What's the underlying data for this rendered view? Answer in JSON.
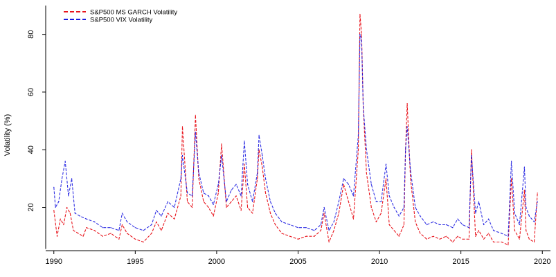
{
  "chart_data": {
    "type": "line",
    "ylabel": "Volatility (%)",
    "xlim": [
      1989.5,
      2020.5
    ],
    "ylim": [
      5,
      90
    ],
    "x_ticks": [
      1990,
      1995,
      2000,
      2005,
      2010,
      2015,
      2020
    ],
    "y_ticks": [
      20,
      40,
      60,
      80
    ],
    "legend_position": "top-left",
    "grid": false,
    "series": [
      {
        "name": "S&P500  MS GARCH Volatility",
        "color": "#e8141c",
        "dash": "dashed",
        "x": [
          1990.0,
          1990.2,
          1990.4,
          1990.6,
          1990.8,
          1991.0,
          1991.2,
          1991.5,
          1991.8,
          1992.0,
          1992.5,
          1993.0,
          1993.5,
          1994.0,
          1994.2,
          1994.5,
          1995.0,
          1995.5,
          1996.0,
          1996.3,
          1996.6,
          1997.0,
          1997.4,
          1997.8,
          1997.9,
          1998.2,
          1998.5,
          1998.7,
          1998.9,
          1999.2,
          1999.5,
          1999.8,
          2000.1,
          2000.3,
          2000.6,
          2000.9,
          2001.2,
          2001.5,
          2001.7,
          2001.9,
          2002.2,
          2002.5,
          2002.6,
          2002.8,
          2003.0,
          2003.3,
          2003.6,
          2004.0,
          2004.5,
          2005.0,
          2005.5,
          2006.0,
          2006.4,
          2006.6,
          2006.9,
          2007.2,
          2007.5,
          2007.8,
          2008.1,
          2008.4,
          2008.7,
          2008.8,
          2008.9,
          2009.0,
          2009.2,
          2009.5,
          2009.8,
          2010.1,
          2010.4,
          2010.6,
          2010.9,
          2011.2,
          2011.5,
          2011.6,
          2011.7,
          2011.9,
          2012.2,
          2012.5,
          2012.9,
          2013.3,
          2013.7,
          2014.1,
          2014.5,
          2014.8,
          2015.1,
          2015.5,
          2015.65,
          2015.9,
          2016.1,
          2016.4,
          2016.7,
          2017.0,
          2017.5,
          2017.9,
          2018.1,
          2018.3,
          2018.6,
          2018.9,
          2019.0,
          2019.2,
          2019.5,
          2019.7
        ],
        "values": [
          19,
          10,
          16,
          14,
          20,
          18,
          12,
          11,
          10,
          13,
          12,
          10,
          11,
          9,
          14,
          11,
          9,
          8,
          11,
          15,
          12,
          18,
          16,
          24,
          48,
          22,
          20,
          52,
          30,
          22,
          20,
          17,
          25,
          42,
          20,
          22,
          24,
          19,
          35,
          20,
          18,
          30,
          40,
          34,
          25,
          18,
          14,
          11,
          10,
          9,
          10,
          10,
          12,
          18,
          8,
          12,
          18,
          28,
          22,
          16,
          40,
          87,
          80,
          55,
          32,
          20,
          15,
          18,
          30,
          14,
          12,
          10,
          14,
          40,
          56,
          30,
          15,
          11,
          9,
          10,
          9,
          10,
          8,
          10,
          9,
          9,
          40,
          10,
          12,
          9,
          11,
          8,
          8,
          7,
          30,
          12,
          9,
          26,
          12,
          9,
          8,
          25
        ]
      },
      {
        "name": "S&P500 VIX Volatility",
        "color": "#1a1ae0",
        "dash": "dashed",
        "x": [
          1990.0,
          1990.1,
          1990.3,
          1990.5,
          1990.7,
          1990.9,
          1991.1,
          1991.3,
          1991.6,
          1992.0,
          1992.5,
          1993.0,
          1993.5,
          1994.0,
          1994.2,
          1994.5,
          1995.0,
          1995.5,
          1996.0,
          1996.3,
          1996.6,
          1997.0,
          1997.4,
          1997.8,
          1997.9,
          1998.2,
          1998.5,
          1998.7,
          1998.9,
          1999.2,
          1999.5,
          1999.8,
          2000.1,
          2000.3,
          2000.6,
          2000.9,
          2001.2,
          2001.5,
          2001.7,
          2001.9,
          2002.2,
          2002.5,
          2002.6,
          2002.8,
          2003.0,
          2003.3,
          2003.6,
          2004.0,
          2004.5,
          2005.0,
          2005.5,
          2006.0,
          2006.4,
          2006.6,
          2006.9,
          2007.2,
          2007.5,
          2007.8,
          2008.1,
          2008.4,
          2008.7,
          2008.8,
          2008.9,
          2009.0,
          2009.2,
          2009.5,
          2009.8,
          2010.1,
          2010.4,
          2010.6,
          2010.9,
          2011.2,
          2011.5,
          2011.6,
          2011.7,
          2011.9,
          2012.2,
          2012.5,
          2012.9,
          2013.3,
          2013.7,
          2014.1,
          2014.5,
          2014.8,
          2015.1,
          2015.5,
          2015.65,
          2015.9,
          2016.1,
          2016.4,
          2016.7,
          2017.0,
          2017.5,
          2017.9,
          2018.1,
          2018.3,
          2018.6,
          2018.9,
          2019.0,
          2019.2,
          2019.5,
          2019.7
        ],
        "values": [
          27,
          20,
          22,
          30,
          36,
          24,
          30,
          18,
          17,
          16,
          15,
          13,
          13,
          12,
          18,
          15,
          13,
          12,
          14,
          19,
          17,
          22,
          20,
          30,
          38,
          25,
          24,
          46,
          32,
          25,
          24,
          21,
          28,
          38,
          22,
          26,
          28,
          24,
          43,
          28,
          22,
          32,
          45,
          38,
          30,
          22,
          18,
          15,
          14,
          13,
          13,
          12,
          14,
          20,
          12,
          15,
          22,
          30,
          28,
          24,
          45,
          80,
          78,
          55,
          40,
          28,
          22,
          22,
          35,
          24,
          20,
          17,
          20,
          40,
          48,
          33,
          20,
          17,
          14,
          15,
          14,
          14,
          13,
          16,
          14,
          13,
          38,
          18,
          22,
          14,
          16,
          12,
          11,
          10,
          36,
          18,
          14,
          34,
          20,
          17,
          15,
          22
        ]
      }
    ]
  }
}
